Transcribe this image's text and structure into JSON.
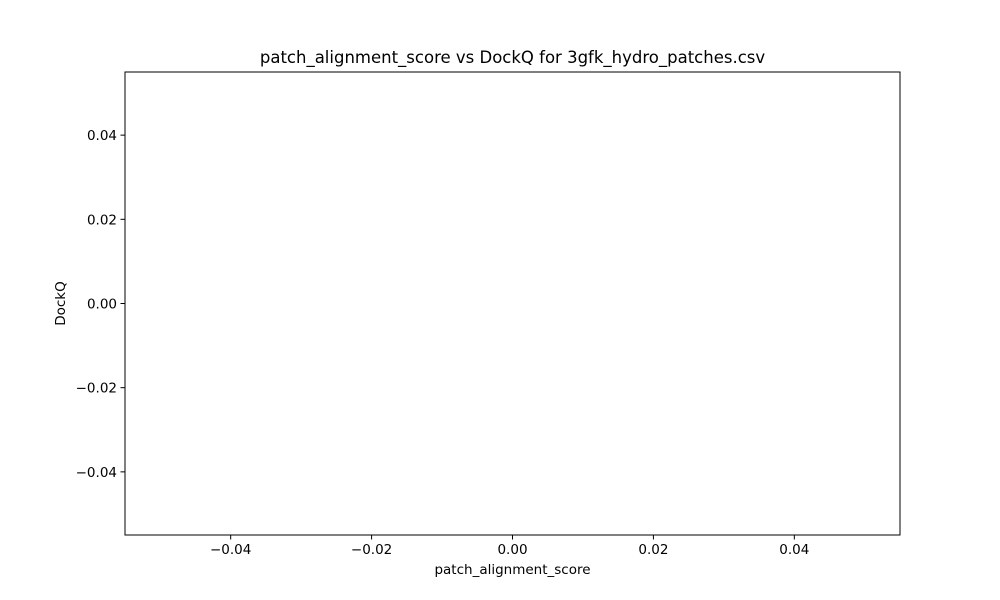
{
  "chart_data": {
    "type": "scatter",
    "title": "patch_alignment_score vs DockQ for 3gfk_hydro_patches.csv",
    "xlabel": "patch_alignment_score",
    "ylabel": "DockQ",
    "xlim": [
      -0.055,
      0.055
    ],
    "ylim": [
      -0.055,
      0.055
    ],
    "xticks": [
      -0.04,
      -0.02,
      0.0,
      0.02,
      0.04
    ],
    "xtick_labels": [
      "−0.04",
      "−0.02",
      "0.00",
      "0.02",
      "0.04"
    ],
    "yticks": [
      -0.04,
      -0.02,
      0.0,
      0.02,
      0.04
    ],
    "ytick_labels": [
      "−0.04",
      "−0.02",
      "0.00",
      "0.02",
      "0.04"
    ],
    "series": [
      {
        "x": [],
        "y": []
      }
    ],
    "grid": false,
    "legend": "none"
  }
}
